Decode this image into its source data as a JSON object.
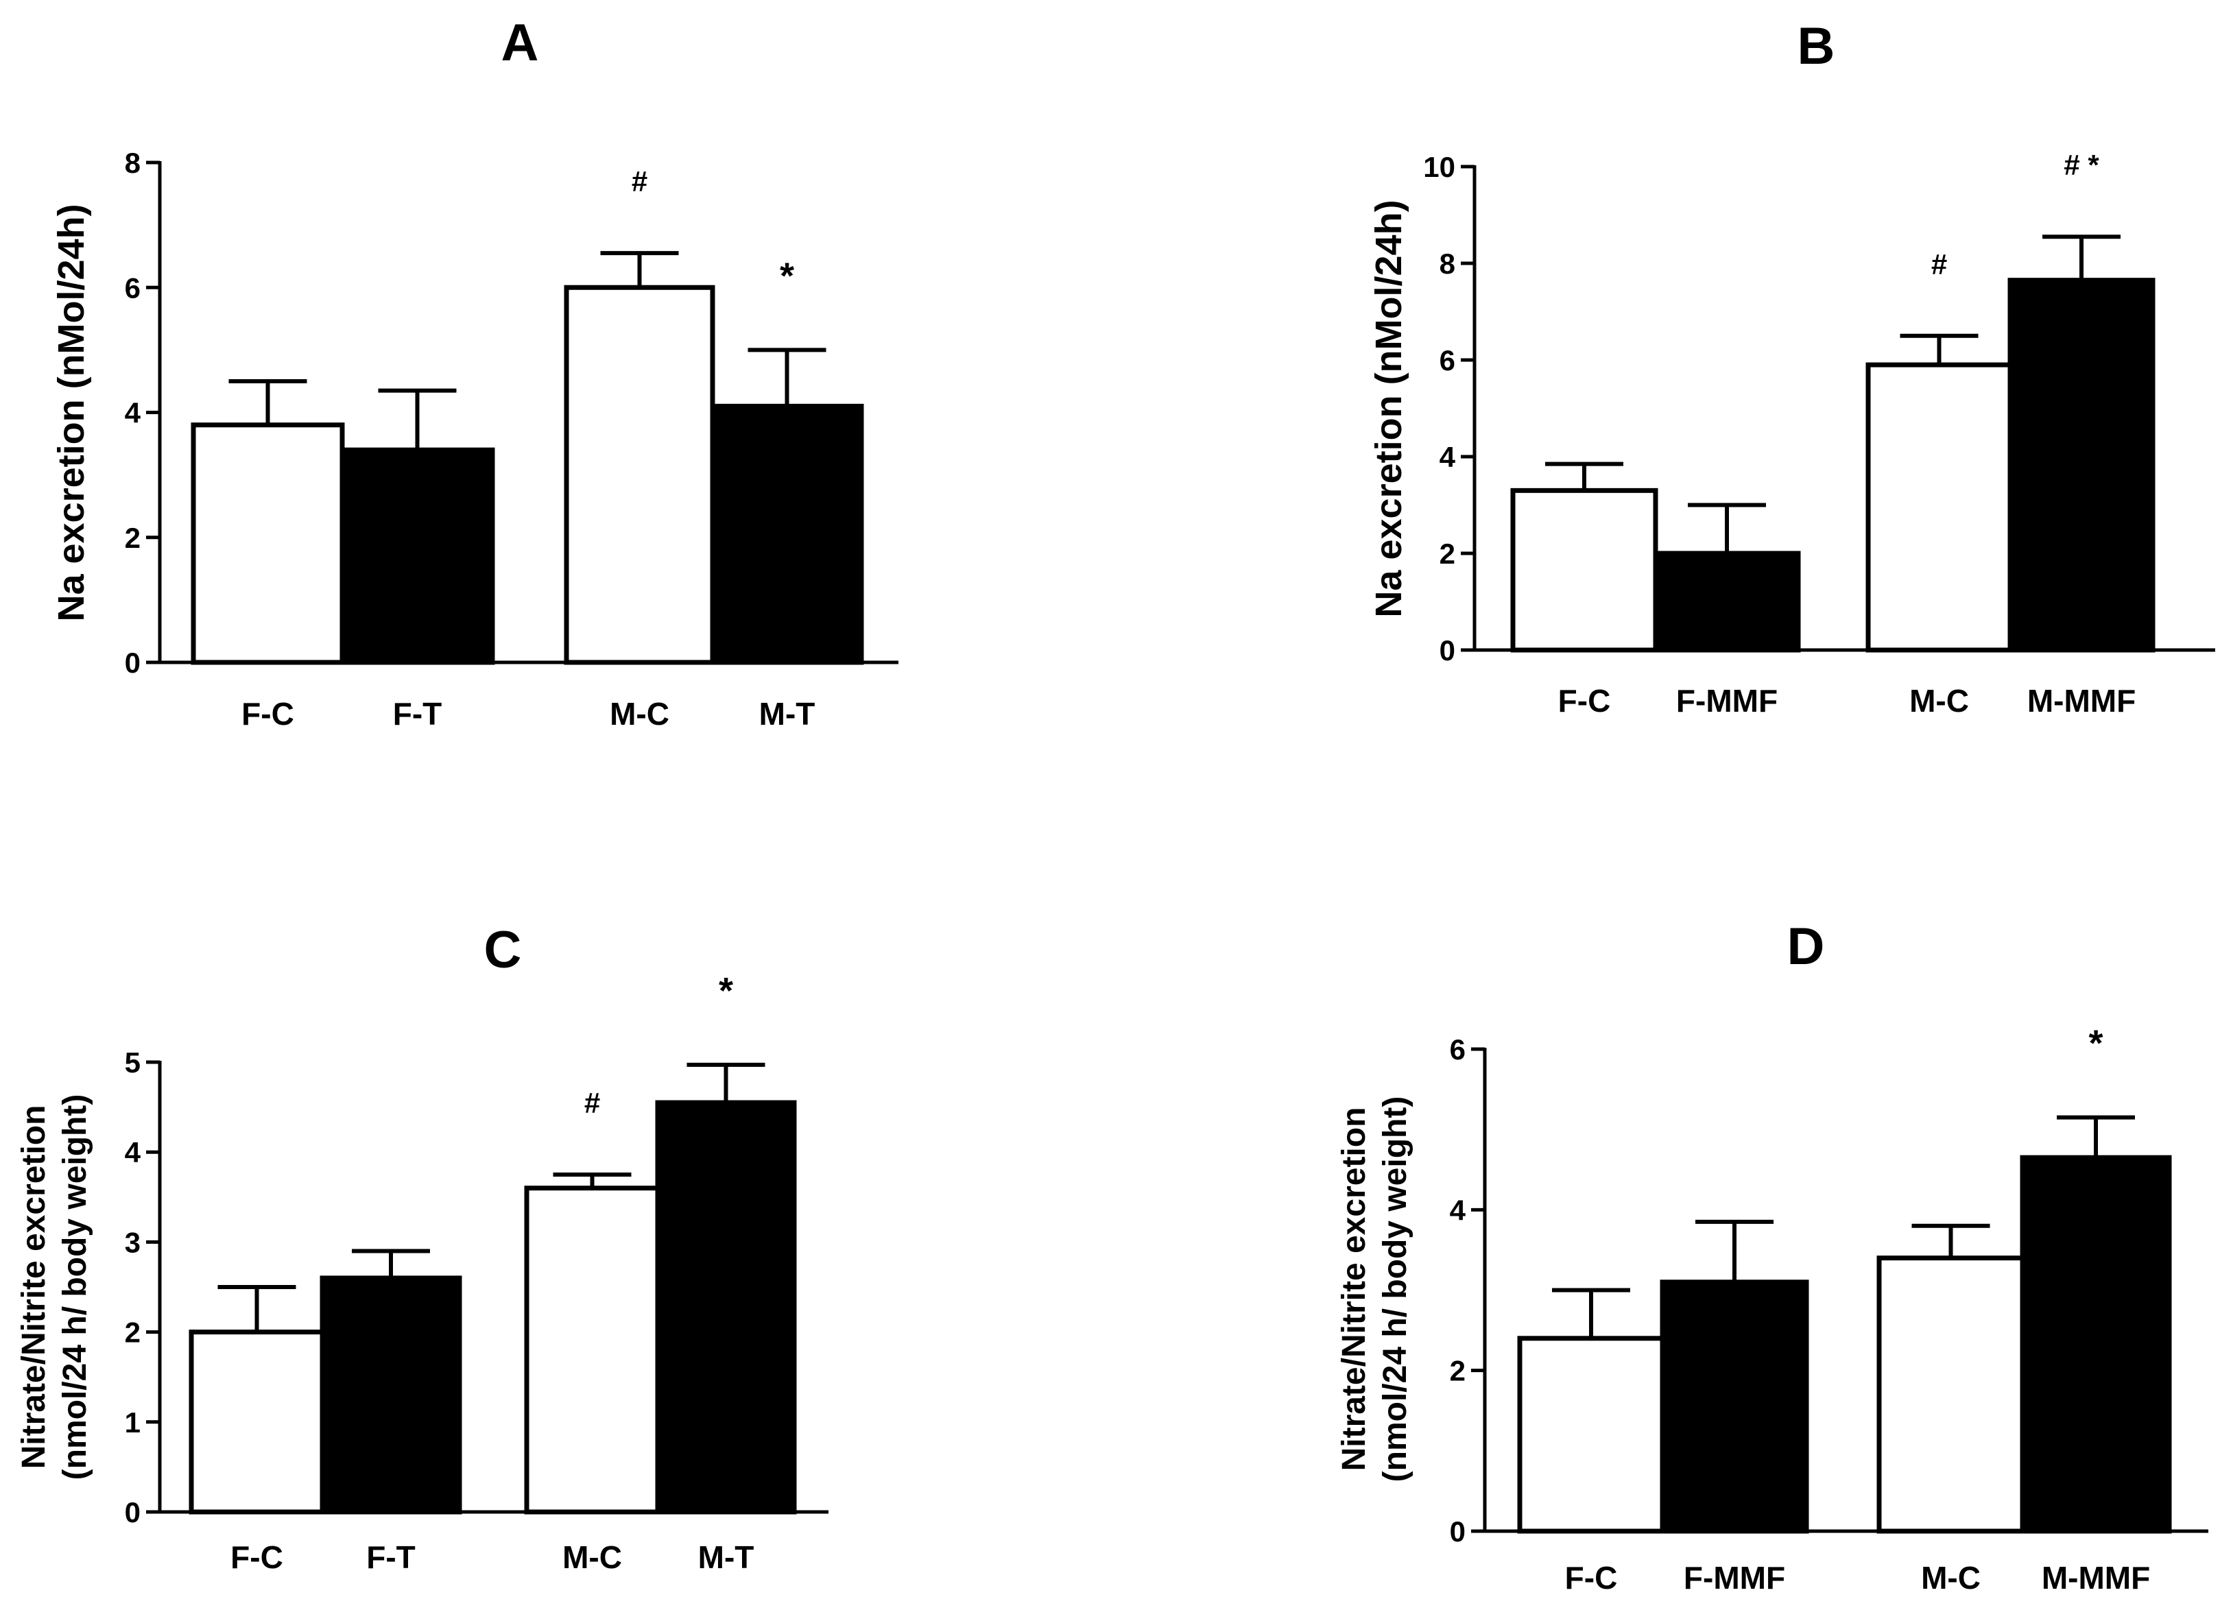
{
  "chart_data": [
    {
      "panel": "A",
      "type": "bar",
      "title": "A",
      "xlabel": "",
      "ylabel": "Na excretion (nMol/24h)",
      "ylim": [
        0,
        8
      ],
      "yticks": [
        0,
        2,
        4,
        6,
        8
      ],
      "categories": [
        "F-C",
        "F-T",
        "M-C",
        "M-T"
      ],
      "values": [
        3.8,
        3.4,
        6.0,
        4.1
      ],
      "errors": [
        0.7,
        0.95,
        0.55,
        0.9
      ],
      "fills": [
        "#ffffff",
        "#000000",
        "#ffffff",
        "#000000"
      ],
      "annotations": [
        "",
        "",
        "#",
        "*"
      ]
    },
    {
      "panel": "B",
      "type": "bar",
      "title": "B",
      "xlabel": "",
      "ylabel": "Na excretion (nMol/24h)",
      "ylim": [
        0,
        10
      ],
      "yticks": [
        0,
        2,
        4,
        6,
        8,
        10
      ],
      "categories": [
        "F-C",
        "F-MMF",
        "M-C",
        "M-MMF"
      ],
      "values": [
        3.3,
        2.0,
        5.9,
        7.65
      ],
      "errors": [
        0.55,
        1.0,
        0.6,
        0.9
      ],
      "fills": [
        "#ffffff",
        "#000000",
        "#ffffff",
        "#000000"
      ],
      "annotations": [
        "",
        "",
        "#",
        "# *"
      ]
    },
    {
      "panel": "C",
      "type": "bar",
      "title": "C",
      "xlabel": "",
      "ylabel_lines": [
        "Nitrate/Nitrite excretion",
        "(nmol/24 h/ body weight)"
      ],
      "ylim": [
        0,
        5
      ],
      "yticks": [
        0,
        1,
        2,
        3,
        4,
        5
      ],
      "categories": [
        "F-C",
        "F-T",
        "M-C",
        "M-T"
      ],
      "values": [
        2.0,
        2.6,
        3.6,
        4.55
      ],
      "errors": [
        0.5,
        0.3,
        0.15,
        0.42
      ],
      "fills": [
        "#ffffff",
        "#000000",
        "#ffffff",
        "#000000"
      ],
      "annotations": [
        "",
        "",
        "#",
        "*"
      ]
    },
    {
      "panel": "D",
      "type": "bar",
      "title": "D",
      "xlabel": "",
      "ylabel_lines": [
        "Nitrate/Nitrite excretion",
        "(nmol/24 h/ body weight)"
      ],
      "ylim": [
        0,
        6
      ],
      "yticks": [
        0,
        2,
        4,
        6
      ],
      "categories": [
        "F-C",
        "F-MMF",
        "M-C",
        "M-MMF"
      ],
      "values": [
        2.4,
        3.1,
        3.4,
        4.65
      ],
      "errors": [
        0.6,
        0.75,
        0.4,
        0.5
      ],
      "fills": [
        "#ffffff",
        "#000000",
        "#ffffff",
        "#000000"
      ],
      "annotations": [
        "",
        "",
        "",
        "*"
      ]
    }
  ],
  "colors": {
    "axis": "#000000",
    "control_fill": "#ffffff",
    "treated_fill": "#000000"
  }
}
